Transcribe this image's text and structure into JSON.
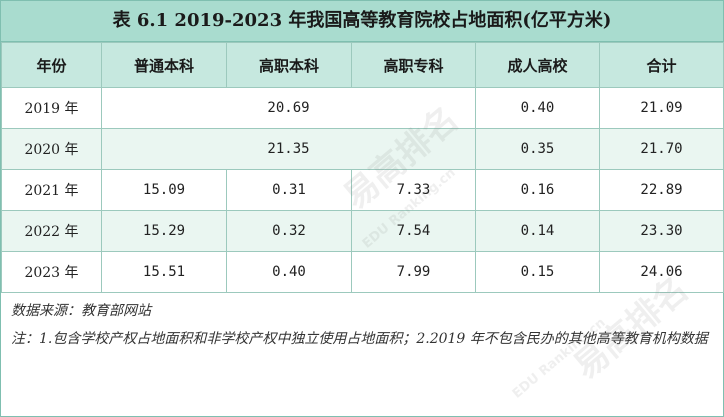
{
  "title": "表 6.1 2019-2023 年我国高等教育院校占地面积(亿平方米)",
  "headers": [
    "年份",
    "普通本科",
    "高职本科",
    "高职专科",
    "成人高校",
    "合计"
  ],
  "rows": [
    {
      "year": "2019 年",
      "merged": "20.69",
      "adult": "0.40",
      "total": "21.09"
    },
    {
      "year": "2020 年",
      "merged": "21.35",
      "adult": "0.35",
      "total": "21.70"
    },
    {
      "year": "2021 年",
      "undergrad": "15.09",
      "voc_bachelor": "0.31",
      "voc_college": "7.33",
      "adult": "0.16",
      "total": "22.89"
    },
    {
      "year": "2022 年",
      "undergrad": "15.29",
      "voc_bachelor": "0.32",
      "voc_college": "7.54",
      "adult": "0.14",
      "total": "23.30"
    },
    {
      "year": "2023 年",
      "undergrad": "15.51",
      "voc_bachelor": "0.40",
      "voc_college": "7.99",
      "adult": "0.15",
      "total": "24.06"
    }
  ],
  "notes": {
    "source": "数据来源：教育部网站",
    "note": "注：1.包含学校产权占地面积和非学校产权中独立使用占地面积；2.2019 年不包含民办的其他高等教育机构数据"
  },
  "watermark": {
    "brand": "易高排名",
    "site": "EDU Ranking.cn"
  }
}
